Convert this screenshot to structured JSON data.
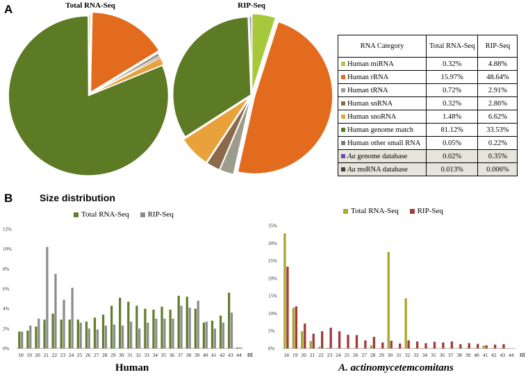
{
  "panel_a_letter": "A",
  "panel_b_letter": "B",
  "size_title": "Size distribution",
  "colors": {
    "miRNA": "#a6c93c",
    "rRNA": "#e26b1e",
    "tRNA": "#9c9c8c",
    "snRNA": "#8b6a4c",
    "snoRNA": "#e9a23b",
    "genome": "#5d7a25",
    "other": "#7b7b7b",
    "aa_genome": "#6a4ca0",
    "aa_msrna": "#404040",
    "total_human": "#627d2c",
    "rip_human": "#8c8c8c",
    "total_aa": "#a8a830",
    "rip_aa": "#a33a3a"
  },
  "table": {
    "headers": [
      "RNA Category",
      "Total RNA-Seq",
      "RIP-Seq"
    ],
    "rows": [
      {
        "label": "Human miRNA",
        "total": "0.32%",
        "rip": "4.88%",
        "color": "#a6c93c"
      },
      {
        "label": "Human rRNA",
        "total": "15.97%",
        "rip": "48.64%",
        "color": "#e26b1e"
      },
      {
        "label": "Human tRNA",
        "total": "0.72%",
        "rip": "2.91%",
        "color": "#9c9c8c"
      },
      {
        "label": "Human snRNA",
        "total": "0.32%",
        "rip": "2.86%",
        "color": "#8b6a4c"
      },
      {
        "label": "Human snoRNA",
        "total": "1.48%",
        "rip": "6.62%",
        "color": "#e9a23b"
      },
      {
        "label": "Human genome match",
        "total": "81.12%",
        "rip": "33.53%",
        "color": "#5d7a25"
      },
      {
        "label": "Human other small RNA",
        "total": "0.05%",
        "rip": "0.22%",
        "color": "#7b7b7b"
      },
      {
        "label_italic": "Aa",
        "label_rest": " genome database",
        "total": "0.02%",
        "rip": "0.35%",
        "color": "#6a4ca0"
      },
      {
        "label_italic": "Aa",
        "label_rest": " msRNA database",
        "total": "0.013%",
        "rip": "0.006%",
        "color": "#404040"
      }
    ]
  },
  "chart_data": [
    {
      "type": "pie",
      "title": "Total RNA-Seq",
      "labels": [
        "Human miRNA",
        "Human rRNA",
        "Human tRNA",
        "Human snRNA",
        "Human snoRNA",
        "Human genome match",
        "Human other small RNA",
        "Aa genome database",
        "Aa msRNA database"
      ],
      "values": [
        0.32,
        15.97,
        0.72,
        0.32,
        1.48,
        81.12,
        0.05,
        0.02,
        0.013
      ],
      "colors": [
        "#a6c93c",
        "#e26b1e",
        "#9c9c8c",
        "#8b6a4c",
        "#e9a23b",
        "#5d7a25",
        "#7b7b7b",
        "#6a4ca0",
        "#404040"
      ]
    },
    {
      "type": "pie",
      "title": "RIP-Seq",
      "labels": [
        "Human miRNA",
        "Human rRNA",
        "Human tRNA",
        "Human snRNA",
        "Human snoRNA",
        "Human genome match",
        "Human other small RNA",
        "Aa genome database",
        "Aa msRNA database"
      ],
      "values": [
        4.88,
        48.64,
        2.91,
        2.86,
        6.62,
        33.53,
        0.22,
        0.35,
        0.006
      ],
      "colors": [
        "#a6c93c",
        "#e26b1e",
        "#9c9c8c",
        "#8b6a4c",
        "#e9a23b",
        "#5d7a25",
        "#7b7b7b",
        "#6a4ca0",
        "#404040"
      ]
    },
    {
      "type": "bar",
      "title": "Human",
      "xlabel": "nt",
      "ylim": [
        0,
        12
      ],
      "yticks": [
        "0%",
        "2%",
        "4%",
        "6%",
        "8%",
        "10%",
        "12%"
      ],
      "categories": [
        "18",
        "19",
        "20",
        "21",
        "22",
        "23",
        "24",
        "25",
        "26",
        "27",
        "28",
        "29",
        "30",
        "31",
        "32",
        "33",
        "34",
        "35",
        "36",
        "37",
        "38",
        "39",
        "40",
        "41",
        "42",
        "43",
        "44"
      ],
      "series": [
        {
          "name": "Total RNA-Seq",
          "color": "#627d2c",
          "values": [
            1.7,
            1.8,
            2.2,
            2.9,
            3.5,
            2.9,
            2.9,
            2.9,
            2.7,
            3.1,
            3.4,
            4.3,
            5.1,
            4.7,
            4.3,
            4.0,
            3.9,
            4.2,
            3.9,
            5.3,
            5.2,
            4.0,
            2.6,
            2.8,
            3.3,
            5.6,
            0.1
          ]
        },
        {
          "name": "RIP-Seq",
          "color": "#8c8c8c",
          "values": [
            1.7,
            2.3,
            3.0,
            10.2,
            7.5,
            4.9,
            6.1,
            2.6,
            2.0,
            1.9,
            2.3,
            2.4,
            2.3,
            2.7,
            2.0,
            2.6,
            3.0,
            3.0,
            3.0,
            4.3,
            4.1,
            4.8,
            2.7,
            2.0,
            2.6,
            3.6,
            0.1
          ]
        }
      ]
    },
    {
      "type": "bar",
      "title_italic": "A. actinomycetemcomitans",
      "xlabel": "nt",
      "ylim": [
        0,
        35
      ],
      "yticks": [
        "0%",
        "5%",
        "10%",
        "15%",
        "20%",
        "25%",
        "30%",
        "35%"
      ],
      "categories": [
        "18",
        "19",
        "20",
        "21",
        "22",
        "23",
        "24",
        "25",
        "26",
        "27",
        "28",
        "29",
        "30",
        "31",
        "32",
        "33",
        "34",
        "35",
        "36",
        "37",
        "38",
        "39",
        "40",
        "41",
        "42",
        "43",
        "44"
      ],
      "series": [
        {
          "name": "Total RNA-Seq",
          "color": "#a8a830",
          "values": [
            32.8,
            11.6,
            4.9,
            2.1,
            0.5,
            0.2,
            0.1,
            0.1,
            0.1,
            0.1,
            0.9,
            0.1,
            27.5,
            0.1,
            14.3,
            0.1,
            0.1,
            0.1,
            0.1,
            0.1,
            0.1,
            0.1,
            0.1,
            0.8,
            0.1,
            0.1,
            0.0
          ]
        },
        {
          "name": "RIP-Seq",
          "color": "#a33a3a",
          "values": [
            23.3,
            12.0,
            7.1,
            4.2,
            4.9,
            5.9,
            4.9,
            3.9,
            3.8,
            2.3,
            3.3,
            1.7,
            2.2,
            1.4,
            2.3,
            2.0,
            1.5,
            1.9,
            1.7,
            2.0,
            1.2,
            1.5,
            1.3,
            0.9,
            1.1,
            1.2,
            0.0
          ]
        }
      ]
    }
  ]
}
